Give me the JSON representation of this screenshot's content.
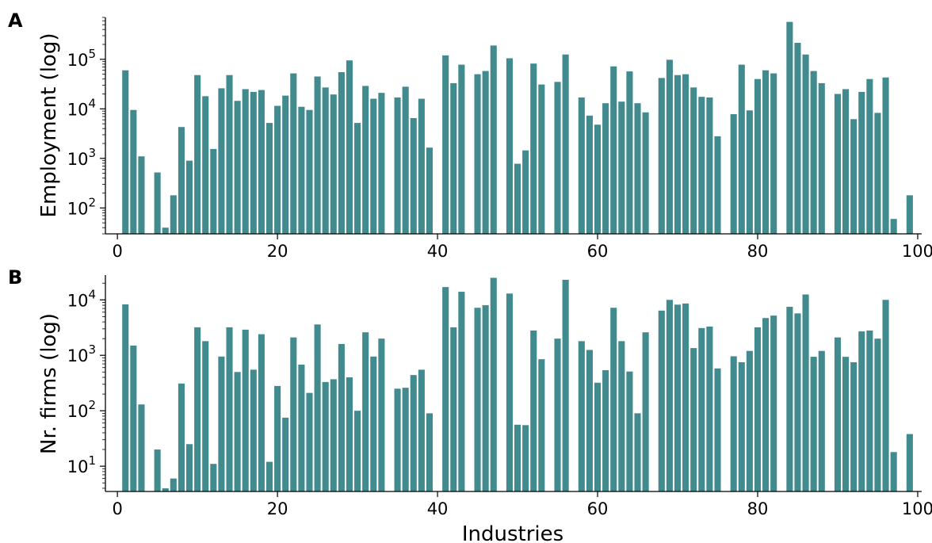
{
  "chart_data": [
    {
      "type": "bar",
      "panel_label": "A",
      "xlabel": "",
      "ylabel": "Employment (log)",
      "yscale": "log",
      "ylim": [
        30,
        700000
      ],
      "xlim": [
        -1.5,
        100.5
      ],
      "xticks": [
        0,
        20,
        40,
        60,
        80,
        100
      ],
      "ytick_exponents": [
        2,
        3,
        4,
        5
      ],
      "color": "#418A8E",
      "x": [
        1,
        2,
        3,
        5,
        6,
        7,
        8,
        9,
        10,
        11,
        12,
        13,
        14,
        15,
        16,
        17,
        18,
        19,
        20,
        21,
        22,
        23,
        24,
        25,
        26,
        27,
        28,
        29,
        30,
        31,
        32,
        33,
        35,
        36,
        37,
        38,
        39,
        41,
        42,
        43,
        45,
        46,
        47,
        49,
        50,
        51,
        52,
        53,
        55,
        56,
        58,
        59,
        60,
        61,
        62,
        63,
        64,
        65,
        66,
        68,
        69,
        70,
        71,
        72,
        73,
        74,
        75,
        77,
        78,
        79,
        80,
        81,
        82,
        84,
        85,
        86,
        87,
        88,
        90,
        91,
        92,
        93,
        94,
        95,
        96,
        97,
        99
      ],
      "values": [
        60000,
        9500,
        1100,
        520,
        40,
        180,
        4300,
        900,
        48000,
        18000,
        1550,
        26000,
        48000,
        14500,
        25000,
        22000,
        24000,
        5200,
        11500,
        18500,
        52000,
        11000,
        9500,
        45000,
        27000,
        19500,
        55000,
        95000,
        5200,
        29000,
        16000,
        21000,
        17000,
        28000,
        6500,
        16000,
        1650,
        120000,
        33000,
        78000,
        50000,
        58000,
        190000,
        105000,
        780,
        1450,
        82000,
        31000,
        35000,
        125000,
        17000,
        7300,
        4800,
        13000,
        72000,
        14000,
        57000,
        13000,
        8500,
        42000,
        98000,
        48000,
        50000,
        27000,
        17500,
        17000,
        2800,
        7800,
        78000,
        9300,
        40000,
        60000,
        52000,
        570000,
        215000,
        125000,
        58000,
        33000,
        20000,
        25000,
        6200,
        22000,
        40000,
        8300,
        43000,
        60,
        180
      ]
    },
    {
      "type": "bar",
      "panel_label": "B",
      "xlabel": "Industries",
      "ylabel": "Nr. firms (log)",
      "yscale": "log",
      "ylim": [
        3.5,
        28000
      ],
      "xlim": [
        -1.5,
        100.5
      ],
      "xticks": [
        0,
        20,
        40,
        60,
        80,
        100
      ],
      "ytick_exponents": [
        1,
        2,
        3,
        4
      ],
      "color": "#418A8E",
      "x": [
        1,
        2,
        3,
        5,
        6,
        7,
        8,
        9,
        10,
        11,
        12,
        13,
        14,
        15,
        16,
        17,
        18,
        19,
        20,
        21,
        22,
        23,
        24,
        25,
        26,
        27,
        28,
        29,
        30,
        31,
        32,
        33,
        35,
        36,
        37,
        38,
        39,
        41,
        42,
        43,
        45,
        46,
        47,
        49,
        50,
        51,
        52,
        53,
        55,
        56,
        58,
        59,
        60,
        61,
        62,
        63,
        64,
        65,
        66,
        68,
        69,
        70,
        71,
        72,
        73,
        74,
        75,
        77,
        78,
        79,
        80,
        81,
        82,
        84,
        85,
        86,
        87,
        88,
        90,
        91,
        92,
        93,
        94,
        95,
        96,
        97,
        99
      ],
      "values": [
        8300,
        1500,
        130,
        20,
        4,
        6,
        310,
        25,
        3200,
        1800,
        11,
        950,
        3200,
        500,
        2900,
        550,
        2400,
        12,
        280,
        75,
        2100,
        680,
        210,
        3600,
        330,
        370,
        1600,
        400,
        100,
        2600,
        950,
        2000,
        250,
        260,
        440,
        550,
        90,
        17000,
        3200,
        14000,
        7200,
        8000,
        25000,
        13000,
        56,
        55,
        2800,
        850,
        2000,
        23000,
        1800,
        1250,
        320,
        540,
        7200,
        1800,
        510,
        90,
        2600,
        6400,
        10000,
        8200,
        8600,
        1350,
        3100,
        3300,
        580,
        960,
        750,
        1200,
        3200,
        4700,
        5200,
        7500,
        5700,
        12500,
        940,
        1200,
        2100,
        940,
        750,
        2700,
        2800,
        2000,
        10000,
        18,
        38
      ]
    }
  ]
}
